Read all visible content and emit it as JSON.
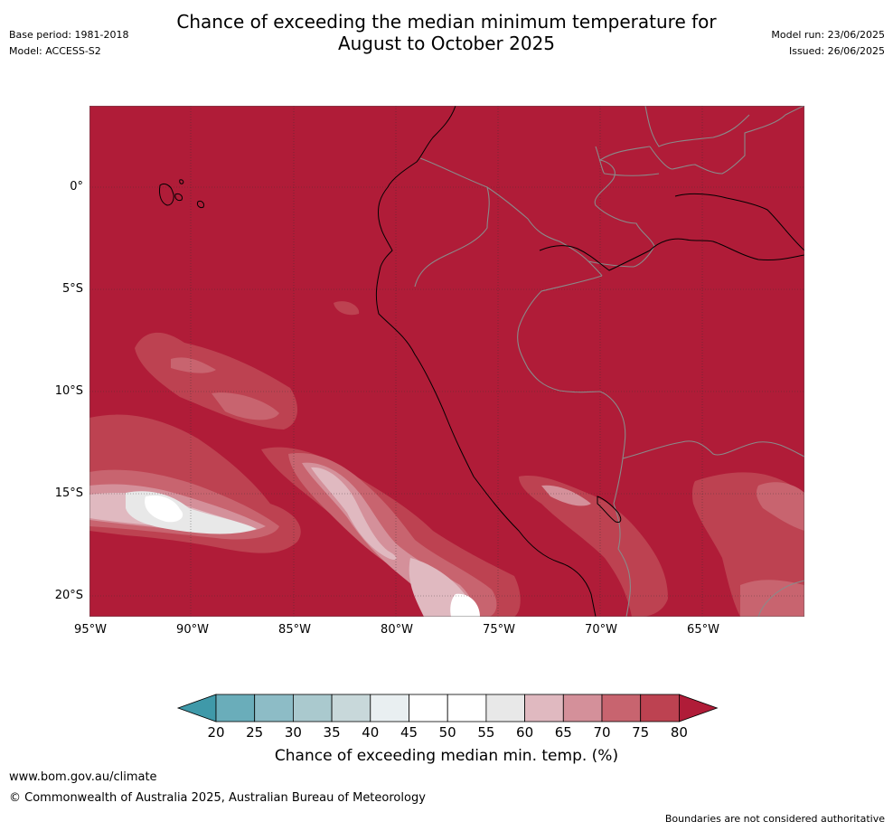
{
  "title": {
    "line1": "Chance of exceeding the median minimum temperature for",
    "line2": "August to October 2025"
  },
  "meta": {
    "base_period": "Base period: 1981-2018",
    "model": "Model: ACCESS-S2",
    "model_run": "Model run: 23/06/2025",
    "issued": "Issued: 26/06/2025"
  },
  "map": {
    "background_color": "#b01c38",
    "lat_labels": [
      "0°",
      "5°S",
      "10°S",
      "15°S",
      "20°S"
    ],
    "lon_labels": [
      "95°W",
      "90°W",
      "85°W",
      "80°W",
      "75°W",
      "70°W",
      "65°W"
    ],
    "region": "Western South America (Ecuador, Peru, Bolivia, northern Chile) and eastern Pacific"
  },
  "colorbar": {
    "ticks": [
      "20",
      "25",
      "30",
      "35",
      "40",
      "45",
      "50",
      "55",
      "60",
      "65",
      "70",
      "75",
      "80"
    ],
    "colors": [
      "#3f99a9",
      "#6aadba",
      "#8dbcc6",
      "#aac9ce",
      "#c8d8da",
      "#e9eff1",
      "#ffffff",
      "#ffffff",
      "#e8e8e8",
      "#e0b9c0",
      "#d4909a",
      "#c8646f",
      "#bd4251",
      "#b01c38"
    ],
    "label": "Chance of exceeding median min. temp. (%)"
  },
  "footer": {
    "url": "www.bom.gov.au/climate",
    "copyright": "© Commonwealth of Australia 2025, Australian Bureau of Meteorology",
    "disclaimer": "Boundaries are not considered authoritative"
  }
}
